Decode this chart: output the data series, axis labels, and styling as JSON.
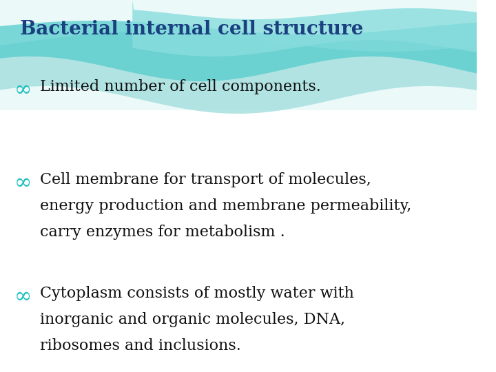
{
  "title": "Bacterial internal cell structure",
  "title_color": "#1a4080",
  "title_fontsize": 20,
  "bullet_color": "#1fbfbf",
  "text_color": "#111111",
  "bullet_symbol": "∞",
  "bullets": [
    {
      "first_line": "Limited number of cell components.",
      "rest_lines": []
    },
    {
      "first_line": "Cell membrane for transport of molecules,",
      "rest_lines": [
        "energy production and membrane permeability,",
        "carry enzymes for metabolism ."
      ]
    },
    {
      "first_line": "Cytoplasm consists of mostly water with",
      "rest_lines": [
        "inorganic and organic molecules, DNA,",
        "ribosomes and inclusions."
      ]
    }
  ],
  "figsize": [
    7.2,
    5.4
  ],
  "dpi": 100
}
